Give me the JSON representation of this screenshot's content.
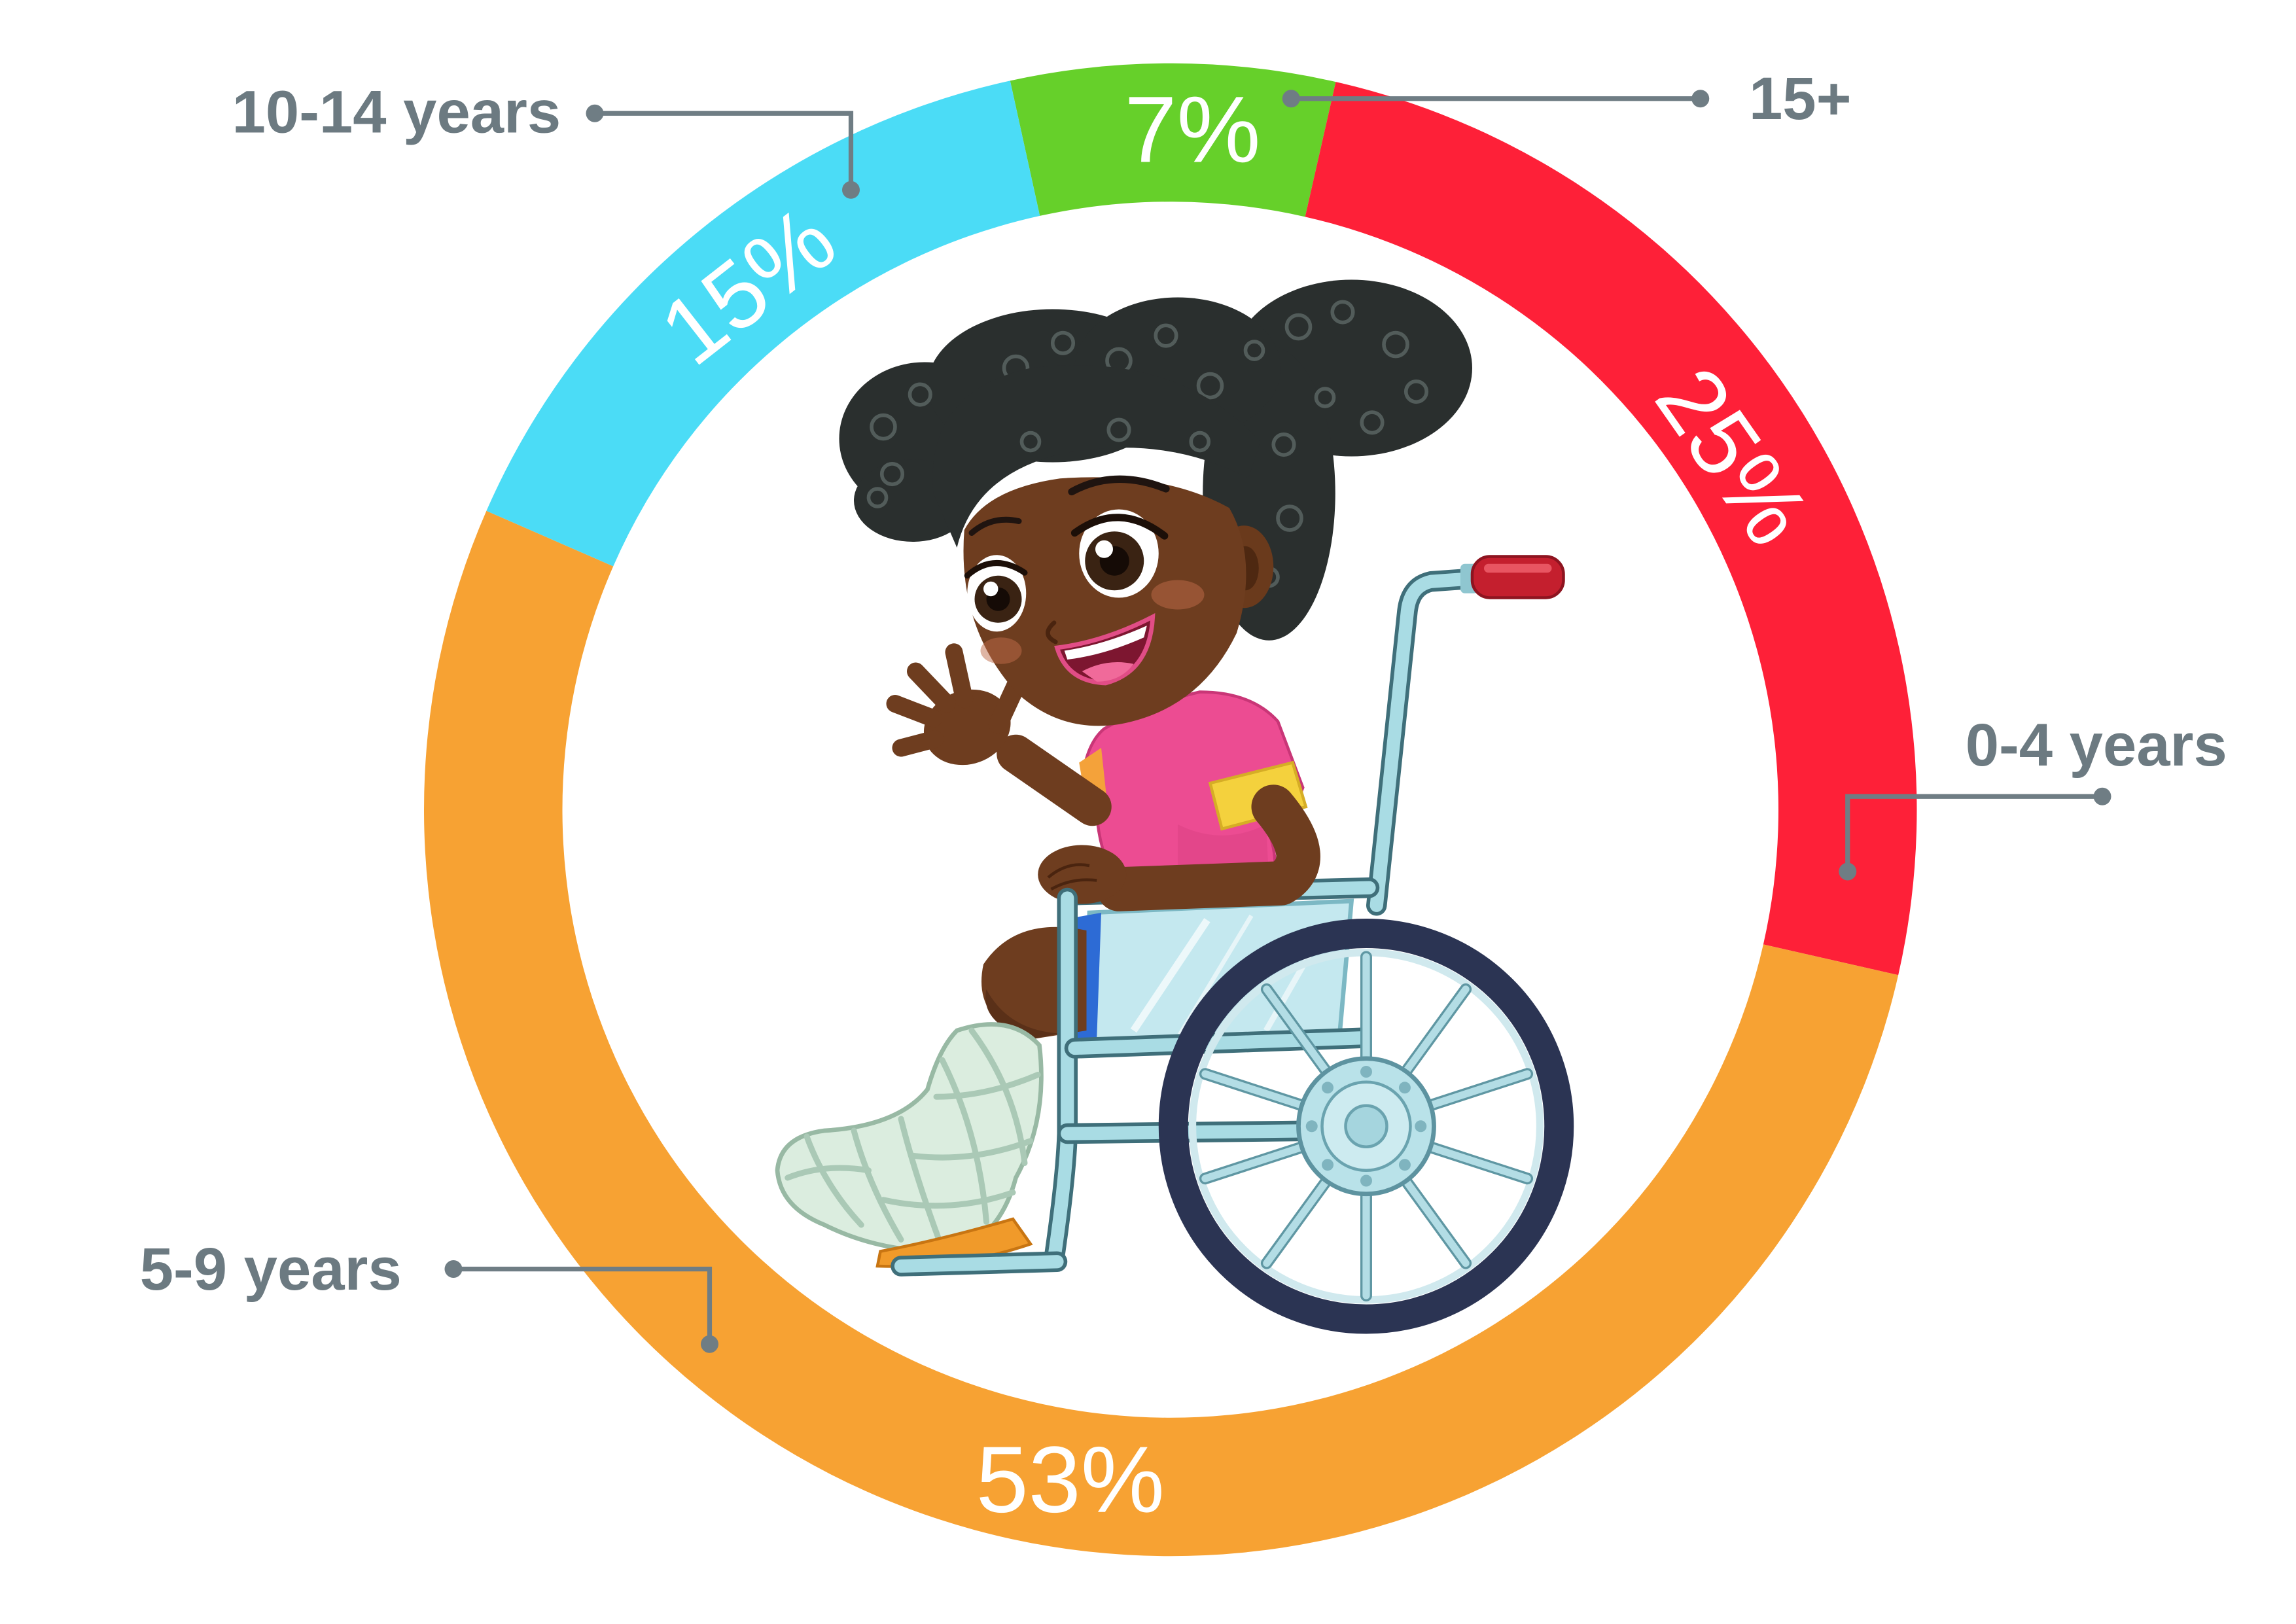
{
  "chart_data": {
    "type": "pie",
    "donut": true,
    "slices": [
      {
        "label": "15+",
        "value": 7,
        "value_label": "7%",
        "color": "#66d02a"
      },
      {
        "label": "0-4 years",
        "value": 25,
        "value_label": "25%",
        "color": "#fe2038"
      },
      {
        "label": "5-9 years",
        "value": 53,
        "value_label": "53%",
        "color": "#f7a233"
      },
      {
        "label": "10-14 years",
        "value": 15,
        "value_label": "15%",
        "color": "#4bdcf6"
      }
    ],
    "category_labels_placement": "outside"
  },
  "colors": {
    "value_text": "#ffffff",
    "label_text": "#6c7a81",
    "leader_line": "#6f7d84"
  },
  "illustration": {
    "icon": "girl-in-wheelchair-illustration"
  }
}
